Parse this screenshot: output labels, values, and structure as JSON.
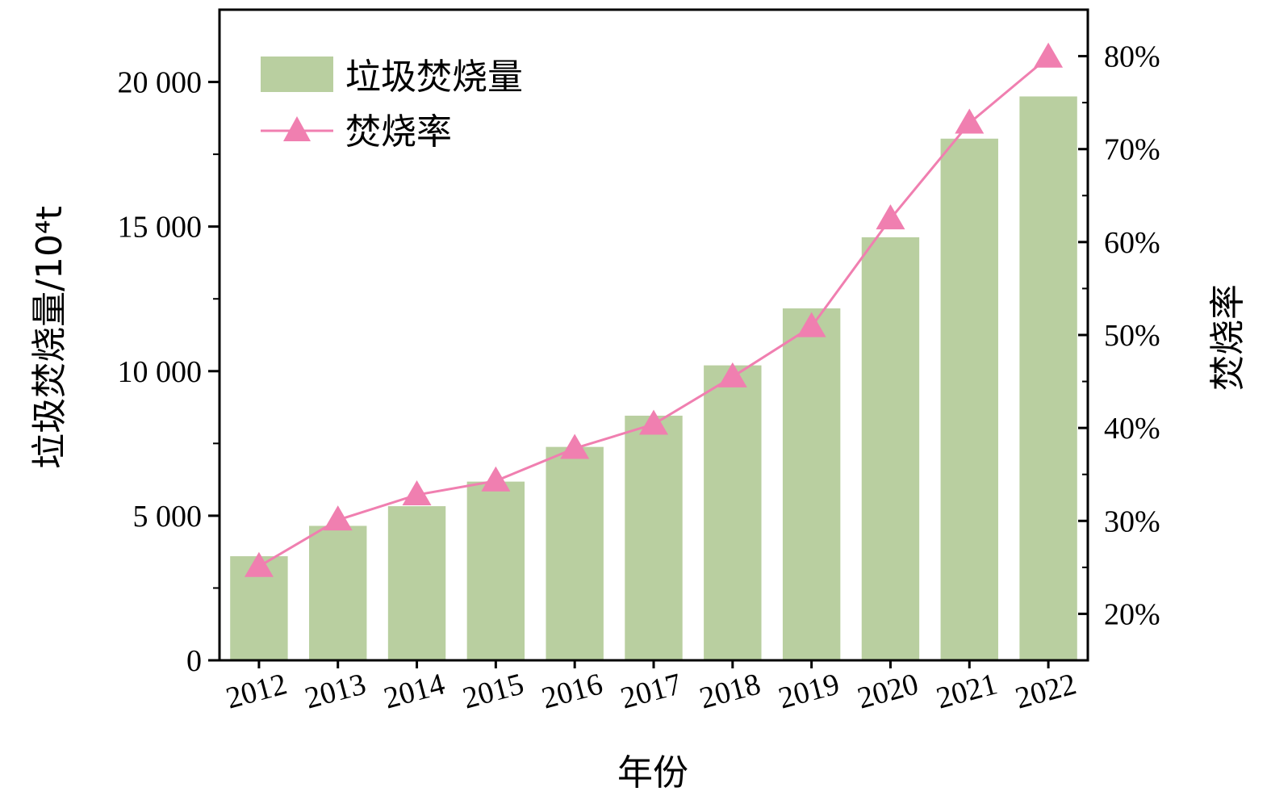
{
  "chart_data": {
    "type": "bar+line",
    "categories": [
      "2012",
      "2013",
      "2014",
      "2015",
      "2016",
      "2017",
      "2018",
      "2019",
      "2020",
      "2021",
      "2022"
    ],
    "xlabel": "年份",
    "ylabel_left": "垃圾焚烧量/10⁴t",
    "ylabel_right": "焚烧率",
    "ylim_left": [
      0,
      22500
    ],
    "ylim_right": [
      15,
      85
    ],
    "yticks_left": [
      0,
      5000,
      10000,
      15000,
      20000
    ],
    "ytick_labels_left": [
      "0",
      "5 000",
      "10 000",
      "15 000",
      "20 000"
    ],
    "yticks_right": [
      20,
      30,
      40,
      50,
      60,
      70,
      80
    ],
    "ytick_labels_right": [
      "20%",
      "30%",
      "40%",
      "50%",
      "60%",
      "70%",
      "80%"
    ],
    "series": [
      {
        "name": "垃圾焚烧量",
        "type": "bar",
        "axis": "left",
        "values": [
          3600,
          4650,
          5330,
          6180,
          7380,
          8460,
          10200,
          12170,
          14630,
          18040,
          19500
        ]
      },
      {
        "name": "焚烧率",
        "type": "line",
        "axis": "right",
        "marker": "triangle",
        "values": [
          25.1,
          30.1,
          32.8,
          34.3,
          37.8,
          40.4,
          45.5,
          50.9,
          62.5,
          72.8,
          79.9
        ]
      }
    ],
    "legend": "top-left",
    "grid": false,
    "colors": {
      "bar": "#b9cfa0",
      "line": "#f07fb0",
      "marker": "#f07fb0"
    }
  }
}
